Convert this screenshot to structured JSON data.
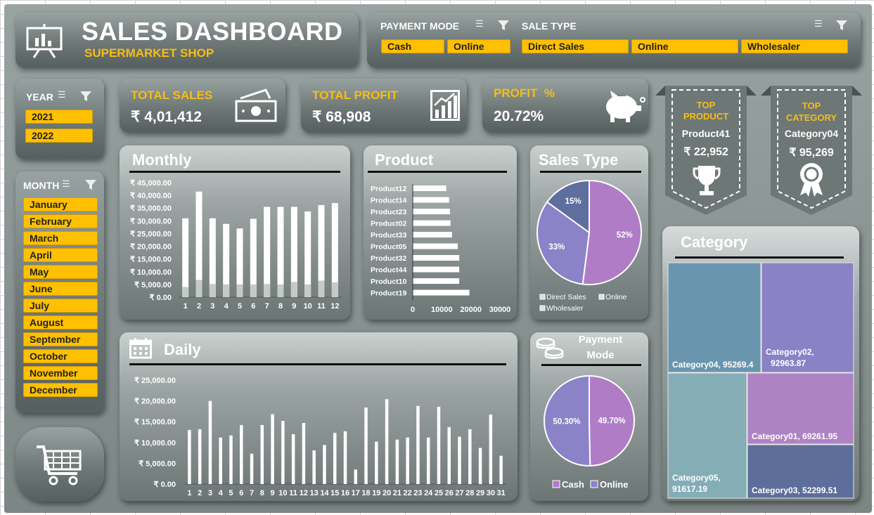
{
  "header": {
    "title": "SALES DASHBOARD",
    "subtitle": "SUPERMARKET SHOP"
  },
  "payment_mode_slicer": {
    "title": "PAYMENT MODE",
    "items": [
      "Cash",
      "Online"
    ]
  },
  "sale_type_slicer": {
    "title": "SALE TYPE",
    "items": [
      "Direct Sales",
      "Online",
      "Wholesaler"
    ]
  },
  "year_slicer": {
    "title": "YEAR",
    "items": [
      "2021",
      "2022"
    ]
  },
  "month_slicer": {
    "title": "MONTH",
    "items": [
      "January",
      "February",
      "March",
      "April",
      "May",
      "June",
      "July",
      "August",
      "September",
      "October",
      "November",
      "December"
    ]
  },
  "kpis": {
    "total_sales": {
      "label": "TOTAL SALES",
      "value": "₹ 4,01,412"
    },
    "total_profit": {
      "label": "TOTAL PROFIT",
      "value": "₹ 68,908"
    },
    "profit_pct": {
      "label": "PROFIT  %",
      "value": "20.72%"
    }
  },
  "top_product": {
    "label1": "TOP",
    "label2": "PRODUCT",
    "name": "Product41",
    "value": "₹ 22,952"
  },
  "top_category": {
    "label1": "TOP",
    "label2": "CATEGORY",
    "name": "Category04",
    "value": "₹ 95,269"
  },
  "panels": {
    "monthly": "Monthly",
    "product": "Product",
    "sales_type": "Sales Type",
    "daily": "Daily",
    "payment_mode_line1": "Payment",
    "payment_mode_line2": "Mode",
    "category": "Category"
  },
  "colors": {
    "gold": "#fec000",
    "pie_purple": "#b07cc6",
    "pie_lavender": "#8b82c8",
    "pie_blue": "#5e6e9e"
  },
  "chart_data": [
    {
      "id": "monthly",
      "type": "bar",
      "title": "Monthly",
      "categories": [
        "1",
        "2",
        "3",
        "4",
        "5",
        "6",
        "7",
        "8",
        "9",
        "10",
        "11",
        "12"
      ],
      "values": [
        31000,
        41500,
        31000,
        28800,
        27000,
        30800,
        35500,
        35500,
        35500,
        33700,
        36200,
        37000
      ],
      "base_values": [
        4000,
        6800,
        5200,
        5000,
        5000,
        5000,
        5200,
        5000,
        6000,
        5000,
        6500,
        5800
      ],
      "y_ticks": [
        "₹ 0.00",
        "₹ 5,000.00",
        "₹ 10,000.00",
        "₹ 15,000.00",
        "₹ 20,000.00",
        "₹ 25,000.00",
        "₹ 30,000.00",
        "₹ 35,000.00",
        "₹ 40,000.00",
        "₹ 45,000.00"
      ],
      "ylim": [
        0,
        45000
      ]
    },
    {
      "id": "product",
      "type": "bar",
      "orientation": "horizontal",
      "title": "Product",
      "categories": [
        "Product12",
        "Product14",
        "Product23",
        "Product02",
        "Product33",
        "Product05",
        "Product32",
        "Product44",
        "Product10",
        "Product19"
      ],
      "values": [
        11500,
        12500,
        12800,
        13000,
        13500,
        15500,
        16000,
        16000,
        16000,
        19500
      ],
      "x_ticks": [
        "0",
        "10000",
        "20000",
        "30000"
      ],
      "xlim": [
        0,
        30000
      ]
    },
    {
      "id": "sales_type",
      "type": "pie",
      "title": "Sales Type",
      "labels": [
        "Direct Sales",
        "Online",
        "Wholesaler"
      ],
      "values": [
        52,
        33,
        15
      ],
      "value_labels": [
        "52%",
        "33%",
        "15%"
      ]
    },
    {
      "id": "daily",
      "type": "bar",
      "title": "Daily",
      "categories": [
        "1",
        "2",
        "3",
        "4",
        "5",
        "6",
        "7",
        "8",
        "9",
        "10",
        "11",
        "12",
        "13",
        "14",
        "15",
        "16",
        "17",
        "18",
        "19",
        "20",
        "21",
        "22",
        "23",
        "24",
        "25",
        "26",
        "27",
        "28",
        "29",
        "30",
        "31"
      ],
      "values": [
        13000,
        13200,
        20000,
        11200,
        11700,
        14200,
        7300,
        14200,
        16800,
        15200,
        12000,
        14700,
        8100,
        9400,
        12300,
        12700,
        3500,
        18400,
        10200,
        20400,
        10700,
        11200,
        18800,
        11200,
        18600,
        13700,
        11400,
        13200,
        8700,
        16700,
        6800
      ],
      "y_ticks": [
        "₹ 0.00",
        "₹ 5,000.00",
        "₹ 10,000.00",
        "₹ 15,000.00",
        "₹ 20,000.00",
        "₹ 25,000.00"
      ],
      "ylim": [
        0,
        25000
      ]
    },
    {
      "id": "payment_mode",
      "type": "pie",
      "title": "Payment Mode",
      "labels": [
        "Cash",
        "Online"
      ],
      "values": [
        49.7,
        50.3
      ],
      "value_labels": [
        "49.70%",
        "50.30%"
      ]
    },
    {
      "id": "category",
      "type": "treemap",
      "title": "Category",
      "labels": [
        "Category04, 95269.4",
        "Category02, 92963.87",
        "Category05, 91617.19",
        "Category01, 69261.95",
        "Category03, 52299.51"
      ],
      "label_lines": [
        [
          "Category04, 95269.4"
        ],
        [
          "Category02,",
          "92963.87"
        ],
        [
          "Category05,",
          "91617.19"
        ],
        [
          "Category01, 69261.95"
        ],
        [
          "Category03, 52299.51"
        ]
      ],
      "values": [
        95269.4,
        92963.87,
        91617.19,
        69261.95,
        52299.51
      ]
    }
  ]
}
